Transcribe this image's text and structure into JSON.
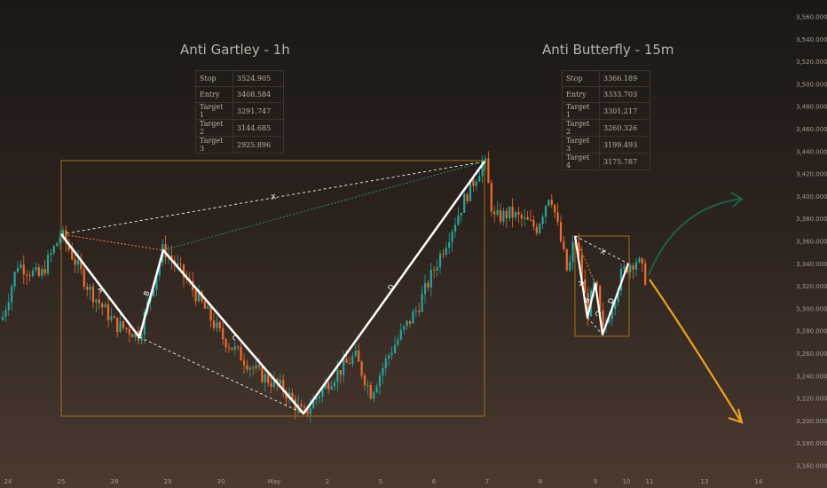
{
  "chart_data": {
    "type": "candlestick",
    "x_ticks": [
      "24",
      "25",
      "28",
      "29",
      "30",
      "May",
      "2",
      "5",
      "6",
      "7",
      "8",
      "9",
      "10",
      "11",
      "13",
      "14"
    ],
    "y_ticks": [
      "3,560.000",
      "3,540.000",
      "3,520.000",
      "3,500.000",
      "3,480.000",
      "3,460.000",
      "3,440.000",
      "3,420.000",
      "3,400.000",
      "3,380.000",
      "3,360.000",
      "3,340.000",
      "3,320.000",
      "3,300.000",
      "3,280.000",
      "3,260.000",
      "3,240.000",
      "3,220.000",
      "3,200.000",
      "3,180.000",
      "3,160.000"
    ],
    "ylim": [
      3160,
      3560
    ],
    "colors": {
      "up": "#26a69a",
      "down": "#ef6c2b",
      "box": "#a0701e",
      "projection_up": "#1f5f4a",
      "projection_down": "#f0a020"
    },
    "patterns": [
      {
        "title": "Anti Gartley - 1h",
        "table": [
          {
            "label": "Stop",
            "value": "3524.905"
          },
          {
            "label": "Entry",
            "value": "3408.584"
          },
          {
            "label": "Target 1",
            "value": "3291.747"
          },
          {
            "label": "Target 2",
            "value": "3144.685"
          },
          {
            "label": "Target 3",
            "value": "2925.896"
          }
        ],
        "leg_labels": [
          "X",
          "A",
          "B",
          "C",
          "D"
        ],
        "pivots": [
          {
            "name": "X",
            "x": "25",
            "y": 3367
          },
          {
            "name": "A",
            "x": "28",
            "y": 3277
          },
          {
            "name": "B",
            "x": "29",
            "y": 3354
          },
          {
            "name": "C",
            "x": "May",
            "y": 3205
          },
          {
            "name": "D",
            "x": "7",
            "y": 3433
          }
        ]
      },
      {
        "title": "Anti Butterfly - 15m",
        "table": [
          {
            "label": "Stop",
            "value": "3366.189"
          },
          {
            "label": "Entry",
            "value": "3333.703"
          },
          {
            "label": "Target 1",
            "value": "3301.217"
          },
          {
            "label": "Target 2",
            "value": "3260.326"
          },
          {
            "label": "Target 3",
            "value": "3199.493"
          },
          {
            "label": "Target 4",
            "value": "3175.787"
          }
        ],
        "leg_labels": [
          "X",
          "A",
          "B",
          "C",
          "D"
        ],
        "pivots": [
          {
            "name": "X",
            "x": "8",
            "y": 3366
          },
          {
            "name": "A",
            "x": "9",
            "y": 3297
          },
          {
            "name": "B",
            "x": "9",
            "y": 3325
          },
          {
            "name": "C",
            "x": "9",
            "y": 3278
          },
          {
            "name": "D",
            "x": "10",
            "y": 3339
          }
        ]
      }
    ]
  }
}
